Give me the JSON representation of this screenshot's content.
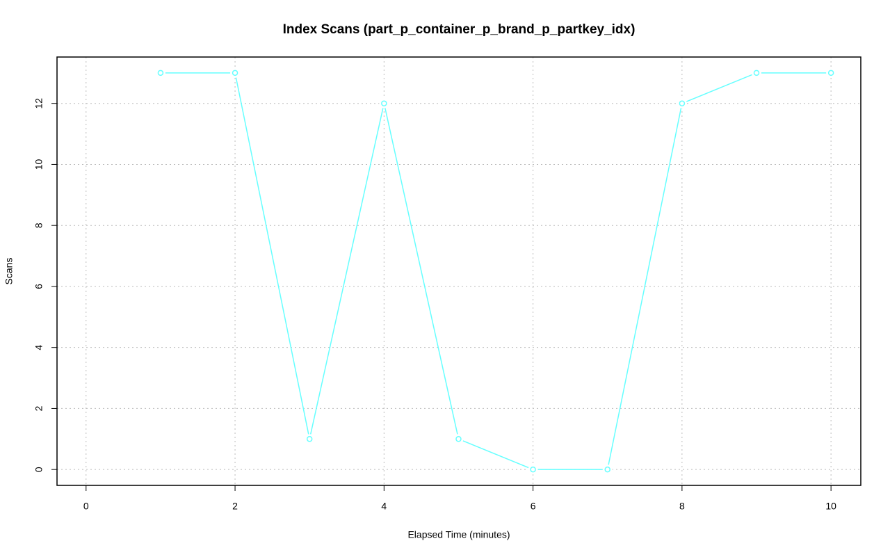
{
  "chart_data": {
    "type": "line",
    "title": "Index Scans (part_p_container_p_brand_p_partkey_idx)",
    "x_label": "Elapsed Time (minutes)",
    "y_label": "Scans",
    "x": [
      1,
      2,
      3,
      4,
      5,
      6,
      7,
      8,
      9,
      10
    ],
    "series": [
      {
        "name": "part_p_container_p_brand_p_partkey_idx",
        "color": "#66ffff",
        "values": [
          13,
          13,
          1,
          12,
          1,
          0,
          0,
          12,
          13,
          13
        ]
      }
    ],
    "xlim": [
      -0.39,
      10.4
    ],
    "ylim": [
      -0.52,
      13.52
    ],
    "xticks": [
      0,
      2,
      4,
      6,
      8,
      10
    ],
    "yticks": [
      0,
      2,
      4,
      6,
      8,
      10,
      12
    ],
    "grid": true
  }
}
